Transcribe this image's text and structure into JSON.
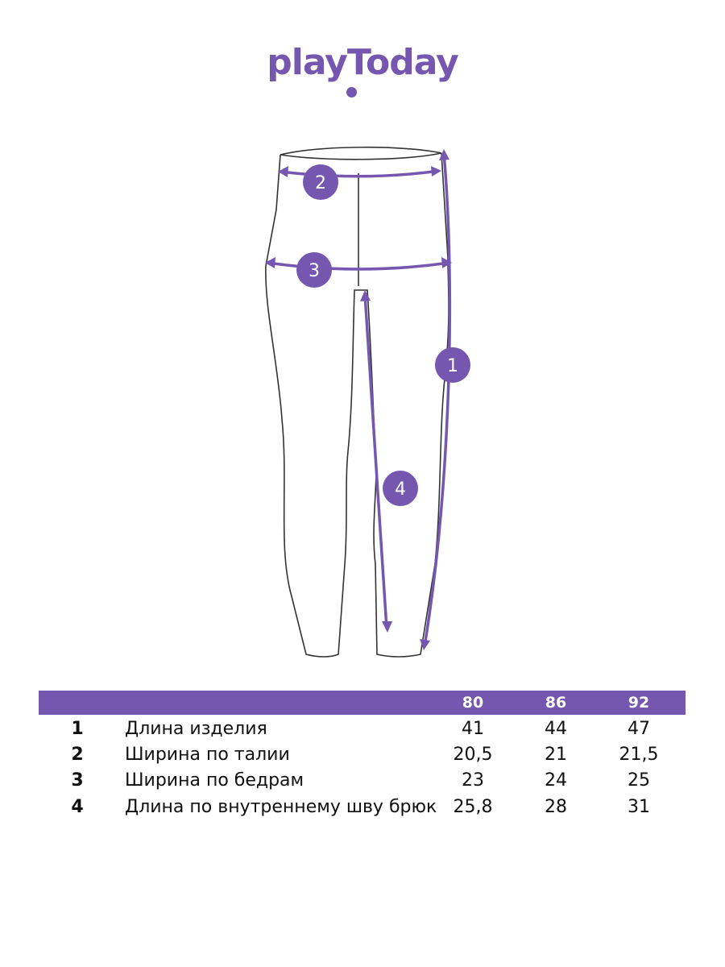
{
  "brand": {
    "logo_text": "playToday",
    "color": "#7557b0"
  },
  "markers": [
    "1",
    "2",
    "3",
    "4"
  ],
  "table": {
    "sizes": [
      "80",
      "86",
      "92"
    ],
    "rows": [
      {
        "num": "1",
        "label": "Длина изделия",
        "values": [
          "41",
          "44",
          "47"
        ]
      },
      {
        "num": "2",
        "label": "Ширина по талии",
        "values": [
          "20,5",
          "21",
          "21,5"
        ]
      },
      {
        "num": "3",
        "label": "Ширина по бедрам",
        "values": [
          "23",
          "24",
          "25"
        ]
      },
      {
        "num": "4",
        "label": "Длина по внутреннему шву брюк",
        "values": [
          "25,8",
          "28",
          "31"
        ]
      }
    ]
  }
}
